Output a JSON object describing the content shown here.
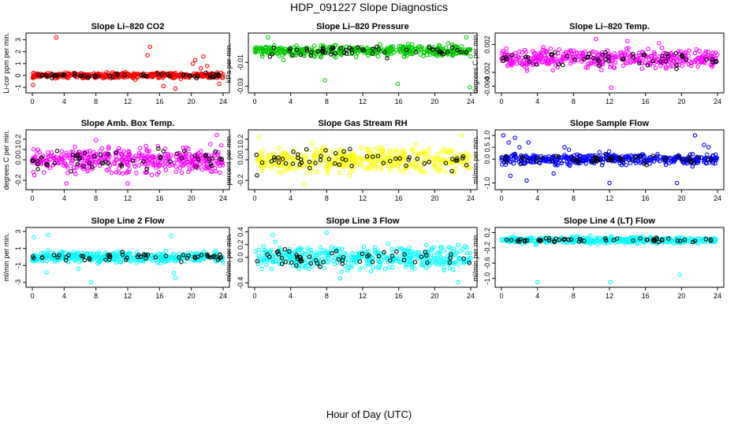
{
  "figure": {
    "title": "HDP_091227  Slope Diagnostics",
    "xlabel": "Hour of Day (UTC)",
    "secondary_color": "#000000"
  },
  "chart_data": [
    {
      "type": "scatter",
      "title": "Slope Li–820 CO2",
      "ylabel": "Li-cor ppm per min.",
      "color": "#ff0000",
      "xlim": [
        0,
        24
      ],
      "ylim": [
        -1.2,
        3.3
      ],
      "xticks": [
        "0",
        "4",
        "8",
        "12",
        "16",
        "20",
        "24"
      ],
      "yticks": [
        {
          "v": -1,
          "label": "-1"
        },
        {
          "v": 0,
          "label": "0"
        },
        {
          "v": 1,
          "label": "1"
        },
        {
          "v": 2,
          "label": "2"
        },
        {
          "v": 3,
          "label": "3"
        }
      ],
      "bulk": {
        "center": 0.0,
        "spread": 0.18
      },
      "outliers": [
        [
          3.0,
          3.2
        ],
        [
          14.5,
          1.7
        ],
        [
          14.8,
          2.4
        ],
        [
          20.5,
          1.3
        ],
        [
          20.2,
          1.0
        ],
        [
          21.2,
          0.6
        ],
        [
          22.0,
          0.8
        ],
        [
          0.1,
          -0.8
        ],
        [
          18.0,
          -1.1
        ],
        [
          23.5,
          -0.7
        ],
        [
          21.5,
          1.6
        ],
        [
          16.5,
          -0.9
        ]
      ]
    },
    {
      "type": "scatter",
      "title": "Slope Li–820 Pressure",
      "ylabel": "kPa per min.",
      "color": "#00cc00",
      "xlim": [
        0,
        24
      ],
      "ylim": [
        -0.033,
        0.012
      ],
      "xticks": [
        "0",
        "4",
        "8",
        "12",
        "16",
        "20",
        "24"
      ],
      "yticks": [
        {
          "v": -0.03,
          "label": "-0.03"
        },
        {
          "v": -0.01,
          "label": "-0.01"
        }
      ],
      "bulk": {
        "center": 0.0,
        "spread": 0.0035
      },
      "outliers": [
        [
          7.8,
          -0.025
        ],
        [
          15.9,
          -0.028
        ],
        [
          23.9,
          -0.031
        ],
        [
          3.2,
          -0.008
        ],
        [
          1.5,
          0.011
        ],
        [
          23.5,
          0.011
        ]
      ]
    },
    {
      "type": "scatter",
      "title": "Slope Li–820 Temp.",
      "ylabel": "degrees C per min.",
      "color": "#ff00ff",
      "xlim": [
        0,
        24
      ],
      "ylim": [
        -0.0045,
        0.0032
      ],
      "xticks": [
        "0",
        "4",
        "8",
        "12",
        "16",
        "20",
        "24"
      ],
      "yticks": [
        {
          "v": -0.004,
          "label": "-0.004"
        },
        {
          "v": -0.002,
          "label": "-0.002"
        },
        {
          "v": 0.002,
          "label": "0.002"
        }
      ],
      "bulk": {
        "center": 0.0,
        "spread": 0.001
      },
      "outliers": [
        [
          12.2,
          -0.0042
        ],
        [
          10.5,
          0.0028
        ],
        [
          14.0,
          0.0025
        ],
        [
          17.5,
          0.0022
        ]
      ]
    },
    {
      "type": "scatter",
      "title": "Slope Amb. Box Temp.",
      "ylabel": "degrees C per min.",
      "color": "#ff00ff",
      "xlim": [
        0,
        24
      ],
      "ylim": [
        -0.26,
        0.26
      ],
      "xticks": [
        "0",
        "4",
        "8",
        "12",
        "16",
        "20",
        "24"
      ],
      "yticks": [
        {
          "v": -0.2,
          "label": "-0.2"
        },
        {
          "v": 0.0,
          "label": "0.0"
        },
        {
          "v": 0.1,
          "label": "0.1"
        },
        {
          "v": 0.2,
          "label": "0.2"
        }
      ],
      "bulk": {
        "center": 0.0,
        "spread": 0.09
      },
      "outliers": [
        [
          23.2,
          0.24
        ],
        [
          8.0,
          0.19
        ],
        [
          4.3,
          -0.23
        ],
        [
          12.0,
          -0.23
        ]
      ]
    },
    {
      "type": "scatter",
      "title": "Slope Gas Stream RH",
      "ylabel": "percent per min.",
      "color": "#ffff00",
      "xlim": [
        0,
        24
      ],
      "ylim": [
        -0.26,
        0.26
      ],
      "xticks": [
        "0",
        "4",
        "8",
        "12",
        "16",
        "20",
        "24"
      ],
      "yticks": [
        {
          "v": -0.2,
          "label": "-0.2"
        },
        {
          "v": 0.0,
          "label": "0.0"
        },
        {
          "v": 0.1,
          "label": "0.1"
        },
        {
          "v": 0.2,
          "label": "0.2"
        }
      ],
      "bulk": {
        "center": 0.0,
        "spread": 0.09
      },
      "outliers": [
        [
          0.5,
          0.22
        ],
        [
          5.5,
          -0.24
        ],
        [
          23.0,
          0.24
        ]
      ]
    },
    {
      "type": "scatter",
      "title": "Slope Sample Flow",
      "ylabel": "ml/min per min.",
      "color": "#0000ff",
      "xlim": [
        0,
        24
      ],
      "ylim": [
        -1.15,
        1.1
      ],
      "xticks": [
        "0",
        "4",
        "8",
        "12",
        "16",
        "20",
        "24"
      ],
      "yticks": [
        {
          "v": -1.0,
          "label": "-1.0"
        },
        {
          "v": 0.0,
          "label": "0.0"
        },
        {
          "v": 0.5,
          "label": "0.5"
        },
        {
          "v": 1.0,
          "label": "1.0"
        }
      ],
      "bulk": {
        "center": 0.0,
        "spread": 0.16
      },
      "outliers": [
        [
          0.2,
          1.0
        ],
        [
          0.8,
          0.7
        ],
        [
          1.5,
          0.9
        ],
        [
          2.0,
          0.5
        ],
        [
          3.0,
          0.7
        ],
        [
          1.0,
          -0.7
        ],
        [
          2.8,
          -0.9
        ],
        [
          5.8,
          -0.6
        ],
        [
          7.0,
          0.5
        ],
        [
          7.5,
          0.4
        ],
        [
          12.0,
          -1.0
        ],
        [
          19.5,
          -1.0
        ],
        [
          21.5,
          1.0
        ],
        [
          22.5,
          0.6
        ],
        [
          23.0,
          0.5
        ]
      ]
    },
    {
      "type": "scatter",
      "title": "Slope Line 2 Flow",
      "ylabel": "ml/min per min.",
      "color": "#00ffff",
      "xlim": [
        0,
        24
      ],
      "ylim": [
        -3.2,
        3.1
      ],
      "xticks": [
        "0",
        "4",
        "8",
        "12",
        "16",
        "20",
        "24"
      ],
      "yticks": [
        {
          "v": -3,
          "label": "-3"
        },
        {
          "v": -1,
          "label": "-1"
        },
        {
          "v": 1,
          "label": "1"
        },
        {
          "v": 3,
          "label": "3"
        }
      ],
      "bulk": {
        "center": 0.0,
        "spread": 0.45
      },
      "outliers": [
        [
          0.2,
          2.3
        ],
        [
          2.0,
          2.6
        ],
        [
          1.8,
          -1.8
        ],
        [
          5.8,
          -1.4
        ],
        [
          7.4,
          -3.0
        ],
        [
          17.5,
          2.5
        ],
        [
          17.8,
          -1.9
        ],
        [
          18.0,
          -2.5
        ]
      ]
    },
    {
      "type": "scatter",
      "title": "Slope Line 3 Flow",
      "ylabel": "ml/min per min.",
      "color": "#00ffff",
      "xlim": [
        0,
        24
      ],
      "ylim": [
        -0.42,
        0.42
      ],
      "xticks": [
        "0",
        "4",
        "8",
        "12",
        "16",
        "20",
        "24"
      ],
      "yticks": [
        {
          "v": -0.4,
          "label": "-0.4"
        },
        {
          "v": 0.0,
          "label": "0.0"
        },
        {
          "v": 0.2,
          "label": "0.2"
        },
        {
          "v": 0.4,
          "label": "0.4"
        }
      ],
      "bulk": {
        "center": 0.0,
        "spread": 0.13
      },
      "outliers": [
        [
          8.0,
          0.39
        ],
        [
          2.0,
          0.35
        ],
        [
          22.6,
          -0.39
        ],
        [
          9.5,
          -0.33
        ]
      ]
    },
    {
      "type": "scatter",
      "title": "Slope Line 4 (LT) Flow",
      "ylabel": "ml/min per min.",
      "color": "#00ffff",
      "xlim": [
        0,
        24
      ],
      "ylim": [
        -1.15,
        0.25
      ],
      "xticks": [
        "0",
        "4",
        "8",
        "12",
        "16",
        "20",
        "24"
      ],
      "yticks": [
        {
          "v": -1.0,
          "label": "-1.0"
        },
        {
          "v": -0.6,
          "label": "-0.6"
        },
        {
          "v": -0.2,
          "label": "-0.2"
        },
        {
          "v": 0.2,
          "label": "0.2"
        }
      ],
      "bulk": {
        "center": 0.0,
        "spread": 0.06
      },
      "outliers": [
        [
          4.0,
          -1.1
        ],
        [
          12.1,
          -1.1
        ],
        [
          19.8,
          -0.9
        ]
      ]
    }
  ]
}
